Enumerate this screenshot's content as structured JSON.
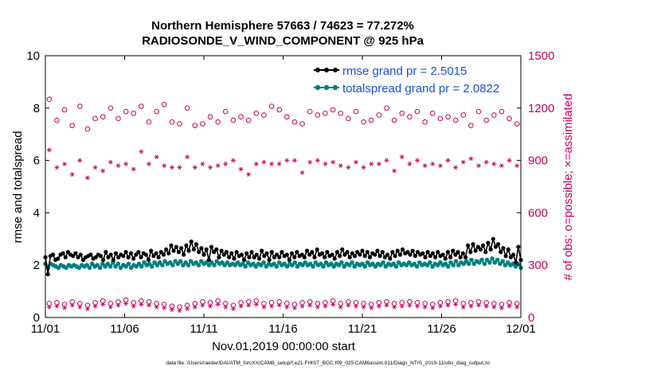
{
  "chart_data": {
    "type": "line",
    "title_line1": "Northern Hemisphere 57663 / 74623 = 77.272%",
    "title_line2": "RADIOSONDE_V_WIND_COMPONENT @ 925 hPa",
    "xlabel": "Nov.01,2019 00:00:00 start",
    "ylabel_left": "rmse and totalspread",
    "ylabel_right": "# of obs: o=possible; ×=assimilated",
    "footer": "data file: /Users/raeder/DAI/ATM_forcXX/CAM6_setup/f.e21.FHIST_BGC.f09_025.CAM6assim.011/Diags_NTrS_2019-11/obs_diag_output.nc",
    "xlim": [
      0,
      30
    ],
    "ylim_left": [
      0,
      10
    ],
    "ylim_right": [
      0,
      1500
    ],
    "x_ticks": [
      0,
      5,
      10,
      15,
      20,
      25,
      30
    ],
    "x_tick_labels": [
      "11/01",
      "11/06",
      "11/11",
      "11/16",
      "11/21",
      "11/26",
      "12/01"
    ],
    "y_ticks_left": [
      "0",
      "2",
      "4",
      "6",
      "8",
      "10"
    ],
    "y_ticks_right": [
      "0",
      "300",
      "600",
      "900",
      "1200",
      "1500"
    ],
    "colors": {
      "rmse": "#000000",
      "totalspread": "#008080",
      "obs": "#c8005a",
      "legend_text": "#1a4fd6"
    },
    "legend": [
      {
        "label": "rmse grand pr = 2.5015",
        "series": "rmse"
      },
      {
        "label": "totalspread grand pr = 2.0822",
        "series": "totalspread"
      }
    ],
    "series": [
      {
        "name": "rmse",
        "axis": "left",
        "values": [
          2.3,
          1.65,
          2.35,
          2.4,
          2.2,
          2.25,
          2.4,
          2.45,
          2.3,
          2.5,
          2.4,
          2.35,
          2.45,
          2.3,
          2.4,
          2.2,
          2.3,
          2.35,
          2.4,
          2.25,
          2.3,
          2.4,
          2.35,
          2.2,
          2.5,
          2.3,
          2.4,
          2.2,
          2.45,
          2.3,
          2.4,
          2.35,
          2.5,
          2.3,
          2.45,
          2.25,
          2.4,
          2.5,
          2.3,
          2.45,
          2.4,
          2.2,
          2.55,
          2.35,
          2.45,
          2.3,
          2.5,
          2.4,
          2.6,
          2.45,
          2.75,
          2.55,
          2.7,
          2.5,
          2.65,
          2.4,
          2.75,
          2.55,
          2.9,
          2.6,
          2.8,
          2.5,
          2.65,
          2.4,
          2.6,
          2.2,
          2.7,
          2.5,
          2.6,
          2.3,
          2.55,
          2.4,
          2.5,
          2.3,
          2.45,
          2.25,
          2.5,
          2.35,
          2.4,
          2.2,
          2.45,
          2.3,
          2.5,
          2.3,
          2.4,
          2.25,
          2.55,
          2.35,
          2.45,
          2.2,
          2.5,
          2.3,
          2.4,
          2.3,
          2.5,
          2.35,
          2.4,
          2.2,
          2.45,
          2.3,
          2.5,
          2.35,
          2.4,
          2.3,
          2.55,
          2.4,
          2.5,
          2.3,
          2.6,
          2.4,
          2.45,
          2.3,
          2.5,
          2.35,
          2.4,
          2.25,
          2.5,
          2.35,
          2.6,
          2.4,
          2.5,
          2.3,
          2.45,
          2.35,
          2.5,
          2.4,
          2.55,
          2.35,
          2.5,
          2.3,
          2.45,
          2.4,
          2.55,
          2.35,
          2.5,
          2.3,
          2.4,
          2.25,
          2.5,
          2.35,
          2.55,
          2.4,
          2.6,
          2.45,
          2.5,
          2.4,
          2.55,
          2.35,
          2.5,
          2.4,
          2.45,
          2.3,
          2.5,
          2.35,
          2.45,
          2.3,
          2.5,
          2.35,
          2.4,
          2.25,
          2.5,
          2.3,
          2.55,
          2.4,
          2.5,
          2.3,
          2.45,
          2.3,
          2.75,
          2.5,
          2.8,
          2.55,
          2.7,
          2.6,
          2.75,
          2.5,
          2.85,
          2.6,
          3.0,
          2.7,
          2.8,
          2.5,
          2.65,
          2.35,
          2.6,
          2.3,
          2.4,
          2.1,
          2.7,
          2.2
        ]
      },
      {
        "name": "totalspread",
        "axis": "left",
        "values": [
          2.05,
          1.9,
          2.05,
          2.0,
          1.95,
          1.9,
          2.0,
          1.95,
          1.9,
          2.0,
          1.95,
          2.0,
          1.95,
          1.9,
          2.0,
          1.95,
          2.0,
          1.9,
          2.05,
          1.95,
          2.0,
          1.9,
          2.05,
          1.95,
          2.05,
          1.95,
          2.1,
          1.95,
          2.05,
          1.9,
          2.0,
          1.95,
          2.05,
          1.9,
          2.0,
          1.95,
          2.05,
          1.95,
          2.1,
          2.0,
          2.05,
          1.95,
          2.1,
          2.0,
          2.1,
          2.0,
          2.15,
          2.05,
          2.1,
          2.0,
          2.15,
          2.05,
          2.15,
          2.0,
          2.1,
          2.0,
          2.15,
          2.05,
          2.1,
          2.0,
          2.15,
          2.05,
          2.1,
          2.0,
          2.1,
          2.0,
          2.15,
          2.05,
          2.1,
          2.0,
          2.1,
          2.0,
          2.05,
          2.0,
          2.1,
          2.0,
          2.05,
          1.95,
          2.1,
          2.0,
          2.05,
          1.95,
          2.05,
          2.0,
          2.1,
          1.95,
          2.05,
          2.0,
          2.05,
          1.95,
          2.1,
          2.0,
          2.05,
          1.95,
          2.05,
          2.0,
          2.1,
          1.95,
          2.05,
          2.0,
          2.1,
          2.0,
          2.05,
          1.95,
          2.1,
          2.0,
          2.05,
          1.95,
          2.1,
          2.0,
          2.05,
          1.95,
          2.05,
          2.0,
          2.1,
          1.95,
          2.05,
          2.0,
          2.1,
          1.95,
          2.05,
          2.0,
          2.05,
          1.95,
          2.1,
          2.0,
          2.05,
          1.95,
          2.05,
          2.0,
          2.1,
          1.95,
          2.05,
          2.0,
          2.05,
          1.95,
          2.1,
          2.0,
          2.05,
          2.0,
          2.1,
          2.0,
          2.05,
          1.95,
          2.1,
          2.0,
          2.05,
          2.0,
          2.1,
          1.95,
          2.05,
          2.0,
          2.1,
          2.0,
          2.05,
          1.95,
          2.1,
          2.0,
          2.15,
          2.0,
          2.1,
          2.05,
          2.15,
          2.05,
          2.2,
          2.05,
          2.15,
          2.1,
          2.2,
          2.05,
          2.2,
          2.1,
          2.25,
          2.1,
          2.2,
          2.05,
          2.15,
          2.0,
          2.1,
          2.0,
          2.05,
          1.95,
          2.05,
          1.9
        ]
      },
      {
        "name": "obs_possible",
        "axis": "right",
        "marker": "o",
        "values": [
          1250,
          1130,
          1190,
          1100,
          1210,
          1080,
          1140,
          1150,
          1200,
          1140,
          1180,
          1170,
          1210,
          1120,
          1180,
          1220,
          1120,
          1110,
          1200,
          1100,
          1110,
          1150,
          1120,
          1180,
          1130,
          1150,
          1130,
          1170,
          1160,
          1210,
          1190,
          1150,
          1120,
          1110,
          1180,
          1160,
          1170,
          1190,
          1170,
          1140,
          1180,
          1120,
          1130,
          1160,
          1200,
          1130,
          1170,
          1150,
          1180,
          1120,
          1170,
          1140,
          1150,
          1130,
          1160,
          1100,
          1180,
          1130,
          1160,
          1180,
          1140,
          1110
        ]
      },
      {
        "name": "obs_assimilated",
        "axis": "right",
        "marker": "*",
        "values": [
          960,
          860,
          880,
          820,
          900,
          800,
          860,
          840,
          890,
          870,
          880,
          850,
          950,
          880,
          920,
          870,
          860,
          860,
          920,
          860,
          880,
          860,
          870,
          880,
          900,
          850,
          820,
          880,
          890,
          880,
          880,
          900,
          900,
          830,
          890,
          900,
          880,
          890,
          870,
          860,
          890,
          860,
          880,
          880,
          900,
          840,
          920,
          880,
          900,
          870,
          880,
          870,
          900,
          860,
          890,
          910,
          870,
          890,
          880,
          870,
          900,
          870
        ]
      },
      {
        "name": "obs_possible_low",
        "axis": "right",
        "marker": "o",
        "values": [
          80,
          85,
          75,
          90,
          80,
          70,
          85,
          95,
          80,
          90,
          100,
          85,
          95,
          90,
          80,
          75,
          65,
          60,
          70,
          80,
          90,
          85,
          95,
          80,
          70,
          85,
          90,
          95,
          80,
          85,
          90,
          80,
          75,
          85,
          90,
          80,
          85,
          95,
          80,
          90,
          85,
          80,
          75,
          85,
          90,
          80,
          85,
          90,
          85,
          80,
          75,
          85,
          90,
          95,
          80,
          85,
          90,
          85,
          80,
          75,
          85,
          80
        ]
      },
      {
        "name": "obs_assimilated_low",
        "axis": "right",
        "marker": "*",
        "values": [
          60,
          65,
          55,
          70,
          60,
          50,
          65,
          75,
          60,
          70,
          80,
          65,
          75,
          70,
          60,
          55,
          45,
          40,
          50,
          60,
          70,
          65,
          75,
          60,
          50,
          65,
          70,
          75,
          60,
          65,
          70,
          60,
          55,
          65,
          70,
          60,
          65,
          75,
          60,
          70,
          65,
          60,
          55,
          65,
          70,
          60,
          65,
          70,
          65,
          60,
          55,
          65,
          70,
          75,
          60,
          65,
          70,
          65,
          60,
          55,
          65,
          60
        ]
      }
    ]
  }
}
